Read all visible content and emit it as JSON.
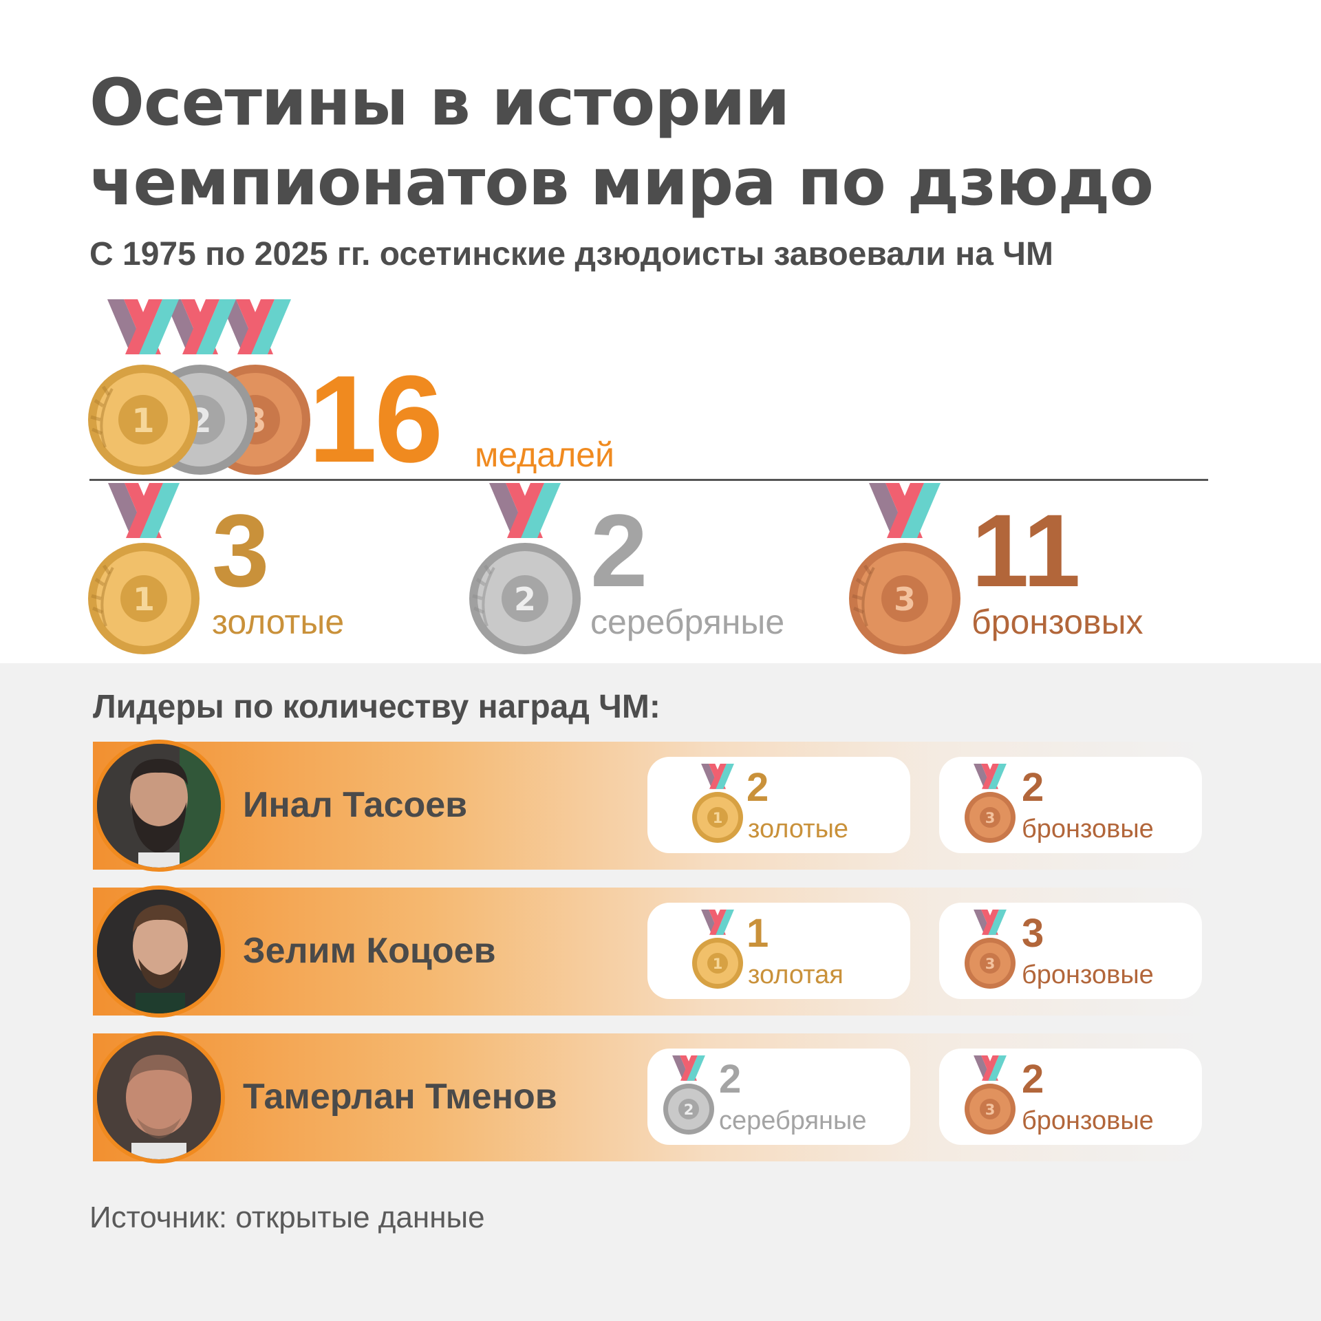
{
  "title": {
    "line1": "Осетины в истории",
    "line2": "чемпионатов мира по дзюдо"
  },
  "subtitle": "С 1975 по 2025 гг. осетинские дзюдоисты завоевали на ЧМ",
  "total": {
    "number": "16",
    "label": "медалей"
  },
  "colors": {
    "gold": "#c9913a",
    "silver": "#a4a4a4",
    "bronze": "#b2663a",
    "accent": "#f08a1f"
  },
  "medal_icons": [
    "gold-medal-icon",
    "silver-medal-icon",
    "bronze-medal-icon"
  ],
  "breakdown": [
    {
      "number": "3",
      "label": "золотые"
    },
    {
      "number": "2",
      "label": "серебряные"
    },
    {
      "number": "11",
      "label": "бронзовых"
    }
  ],
  "leaders_heading": "Лидеры по количеству наград ЧМ:",
  "leaders": [
    {
      "name": "Инал Тасоев",
      "awards": [
        {
          "type": "gold",
          "number": "2",
          "label": "золотые"
        },
        {
          "type": "bronze",
          "number": "2",
          "label": "бронзовые"
        }
      ]
    },
    {
      "name": "Зелим Коцоев",
      "awards": [
        {
          "type": "gold",
          "number": "1",
          "label": "золотая"
        },
        {
          "type": "bronze",
          "number": "3",
          "label": "бронзовые"
        }
      ]
    },
    {
      "name": "Тамерлан Тменов",
      "awards": [
        {
          "type": "silver",
          "number": "2",
          "label": "серебряные"
        },
        {
          "type": "bronze",
          "number": "2",
          "label": "бронзовые"
        }
      ]
    }
  ],
  "source": "Источник: открытые данные"
}
